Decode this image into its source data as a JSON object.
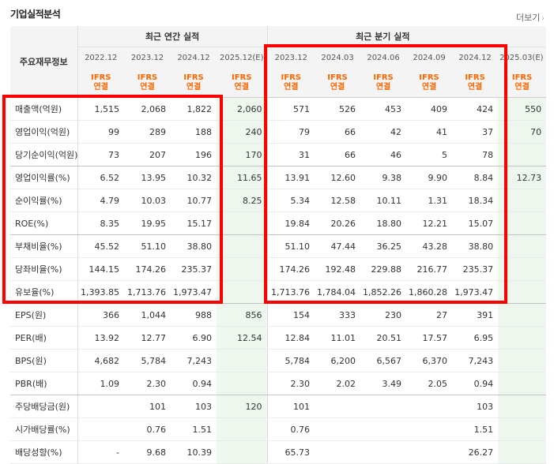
{
  "header": {
    "title": "기업실적분석",
    "more_label": "더보기",
    "more_arrow": "›"
  },
  "groups": {
    "annual": "최근 연간 실적",
    "quarterly": "최근 분기 실적"
  },
  "row_header": "주요재무정보",
  "columns": [
    "2022.12",
    "2023.12",
    "2024.12",
    "2025.12(E)",
    "2023.12",
    "2024.03",
    "2024.06",
    "2024.09",
    "2024.12",
    "2025.03(E)"
  ],
  "est_trailing_label": "(E)",
  "ifrs": {
    "top": "IFRS",
    "bottom": "연결"
  },
  "rows": [
    {
      "label": "매출액(억원)",
      "values": [
        "1,515",
        "2,068",
        "1,822",
        "2,060",
        "571",
        "526",
        "453",
        "409",
        "424",
        "550"
      ]
    },
    {
      "label": "영업이익(억원)",
      "values": [
        "99",
        "289",
        "188",
        "240",
        "79",
        "66",
        "42",
        "41",
        "37",
        "70"
      ]
    },
    {
      "label": "당기순이익(억원)",
      "values": [
        "73",
        "207",
        "196",
        "170",
        "31",
        "66",
        "46",
        "5",
        "78",
        ""
      ]
    },
    {
      "label": "영업이익률(%)",
      "values": [
        "6.52",
        "13.95",
        "10.32",
        "11.65",
        "13.91",
        "12.60",
        "9.38",
        "9.90",
        "8.84",
        "12.73"
      ]
    },
    {
      "label": "순이익률(%)",
      "values": [
        "4.79",
        "10.03",
        "10.77",
        "8.25",
        "5.34",
        "12.58",
        "10.11",
        "1.31",
        "18.34",
        ""
      ]
    },
    {
      "label": "ROE(%)",
      "values": [
        "8.35",
        "19.95",
        "15.17",
        "",
        "19.84",
        "20.26",
        "18.80",
        "12.21",
        "15.07",
        ""
      ]
    },
    {
      "label": "부채비율(%)",
      "values": [
        "45.52",
        "51.10",
        "38.80",
        "",
        "51.10",
        "47.44",
        "36.25",
        "43.28",
        "38.80",
        ""
      ]
    },
    {
      "label": "당좌비율(%)",
      "values": [
        "144.15",
        "174.26",
        "235.37",
        "",
        "174.26",
        "192.48",
        "229.88",
        "216.77",
        "235.37",
        ""
      ]
    },
    {
      "label": "유보율(%)",
      "values": [
        "1,393.85",
        "1,713.76",
        "1,973.47",
        "",
        "1,713.76",
        "1,784.04",
        "1,852.26",
        "1,860.28",
        "1,973.47",
        ""
      ]
    },
    {
      "label": "EPS(원)",
      "values": [
        "366",
        "1,044",
        "988",
        "856",
        "154",
        "333",
        "230",
        "27",
        "391",
        ""
      ]
    },
    {
      "label": "PER(배)",
      "values": [
        "13.92",
        "12.77",
        "6.90",
        "12.54",
        "12.84",
        "11.01",
        "20.51",
        "17.57",
        "6.95",
        ""
      ]
    },
    {
      "label": "BPS(원)",
      "values": [
        "4,682",
        "5,784",
        "7,243",
        "",
        "5,784",
        "6,200",
        "6,567",
        "6,370",
        "7,243",
        ""
      ]
    },
    {
      "label": "PBR(배)",
      "values": [
        "1.09",
        "2.30",
        "0.94",
        "",
        "2.30",
        "2.02",
        "3.49",
        "2.05",
        "0.94",
        ""
      ]
    },
    {
      "label": "주당배당금(원)",
      "values": [
        "",
        "101",
        "103",
        "120",
        "101",
        "",
        "",
        "",
        "103",
        ""
      ]
    },
    {
      "label": "시가배당률(%)",
      "values": [
        "",
        "0.76",
        "1.51",
        "",
        "0.76",
        "",
        "",
        "",
        "1.51",
        ""
      ]
    },
    {
      "label": "배당성향(%)",
      "values": [
        "-",
        "9.68",
        "10.39",
        "",
        "65.73",
        "",
        "",
        "",
        "26.27",
        ""
      ]
    }
  ],
  "highlight_color": "#ff0000",
  "ifrs_color": "#ff6600",
  "estimate_bg": "#eef7ee"
}
